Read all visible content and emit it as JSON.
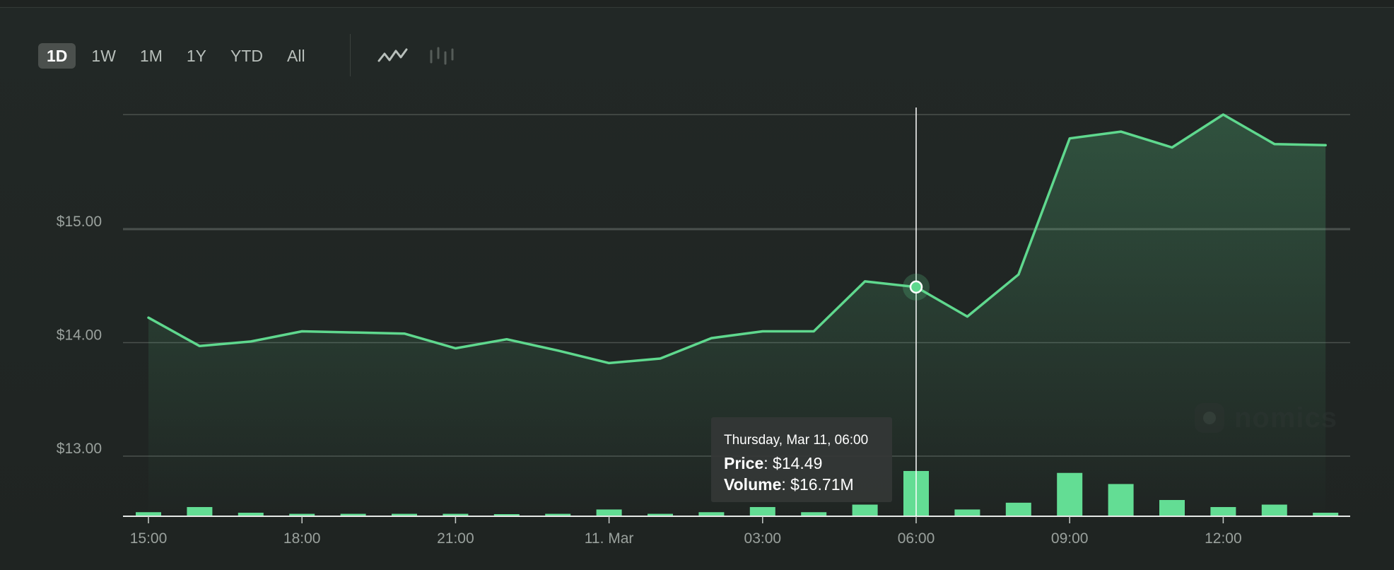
{
  "range_buttons": [
    {
      "label": "1D",
      "active": true
    },
    {
      "label": "1W",
      "active": false
    },
    {
      "label": "1M",
      "active": false
    },
    {
      "label": "1Y",
      "active": false
    },
    {
      "label": "YTD",
      "active": false
    },
    {
      "label": "All",
      "active": false
    }
  ],
  "chart_type_toggle": {
    "line_icon": "line-chart-icon",
    "candle_icon": "candlestick-icon",
    "active": "line"
  },
  "watermark": "nomics",
  "colors": {
    "line": "#5fd88e",
    "bar": "#63dd94",
    "grid": "#4a504d",
    "axis_text": "#9aa19d",
    "crosshair": "#ffffff"
  },
  "tooltip": {
    "date": "Thursday, Mar 11, 06:00",
    "price_label": "Price",
    "price_value": "$14.49",
    "volume_label": "Volume",
    "volume_value": "$16.71M"
  },
  "chart_data": {
    "type": "line",
    "x_tick_labels": [
      "15:00",
      "18:00",
      "21:00",
      "11. Mar",
      "03:00",
      "06:00",
      "09:00",
      "12:00"
    ],
    "y_tick_labels": [
      "$13.00",
      "$14.00",
      "$15.00"
    ],
    "y_ticks": [
      13,
      14,
      15
    ],
    "ylim": [
      12.47,
      16.01
    ],
    "x": [
      "15:00",
      "16:00",
      "17:00",
      "18:00",
      "19:00",
      "20:00",
      "21:00",
      "22:00",
      "23:00",
      "00:00",
      "01:00",
      "02:00",
      "03:00",
      "04:00",
      "05:00",
      "06:00",
      "07:00",
      "08:00",
      "09:00",
      "10:00",
      "11:00",
      "12:00",
      "13:00",
      "14:00"
    ],
    "grid": true,
    "hovered_index": 15,
    "series": [
      {
        "values": [
          14.22,
          13.97,
          14.01,
          14.1,
          14.09,
          14.08,
          13.95,
          14.03,
          13.93,
          13.82,
          13.86,
          14.04,
          14.1,
          14.1,
          14.54,
          14.49,
          14.23,
          14.6,
          15.8,
          15.86,
          15.72,
          16.01,
          15.75,
          15.74
        ]
      }
    ],
    "volume": {
      "values": [
        1.5,
        3.4,
        1.3,
        0.9,
        0.9,
        0.9,
        0.9,
        0.4,
        0.9,
        2.5,
        0.9,
        1.5,
        3.4,
        1.5,
        4.3,
        16.71,
        2.5,
        5.0,
        16.0,
        11.9,
        6.0,
        3.4,
        4.3,
        1.3
      ],
      "max": 16.71
    }
  }
}
